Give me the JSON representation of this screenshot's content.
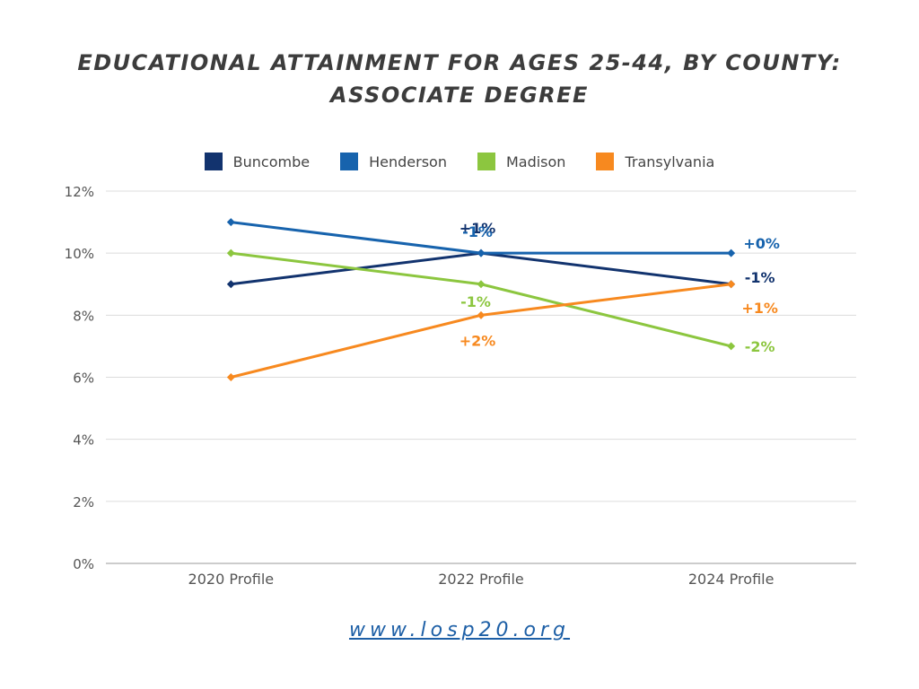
{
  "page": {
    "title_line1": "EDUCATIONAL ATTAINMENT FOR AGES 25-44, BY COUNTY:",
    "title_line2": "ASSOCIATE DEGREE",
    "footer_link": "www.losp20.org"
  },
  "chart_data": {
    "type": "line",
    "title": "EDUCATIONAL ATTAINMENT FOR AGES 25-44, BY COUNTY: ASSOCIATE DEGREE",
    "categories": [
      "2020 Profile",
      "2022 Profile",
      "2024 Profile"
    ],
    "ylim": [
      0,
      12
    ],
    "yticks": [
      0,
      2,
      4,
      6,
      8,
      10,
      12
    ],
    "ytick_labels": [
      "0%",
      "2%",
      "4%",
      "6%",
      "8%",
      "10%",
      "12%"
    ],
    "grid": true,
    "legend": "top",
    "series": [
      {
        "name": "Buncombe",
        "color": "#12336e",
        "values": [
          9,
          10,
          9
        ],
        "labels": [
          "",
          "+1%",
          "-1%"
        ]
      },
      {
        "name": "Henderson",
        "color": "#1763ad",
        "values": [
          11,
          10,
          10
        ],
        "labels": [
          "",
          "-1%",
          "+0%"
        ]
      },
      {
        "name": "Madison",
        "color": "#8cc63f",
        "values": [
          10,
          9,
          7
        ],
        "labels": [
          "",
          "-1%",
          "-2%"
        ]
      },
      {
        "name": "Transylvania",
        "color": "#f7891f",
        "values": [
          6,
          8,
          9
        ],
        "labels": [
          "",
          "+2%",
          "+1%"
        ]
      }
    ]
  }
}
